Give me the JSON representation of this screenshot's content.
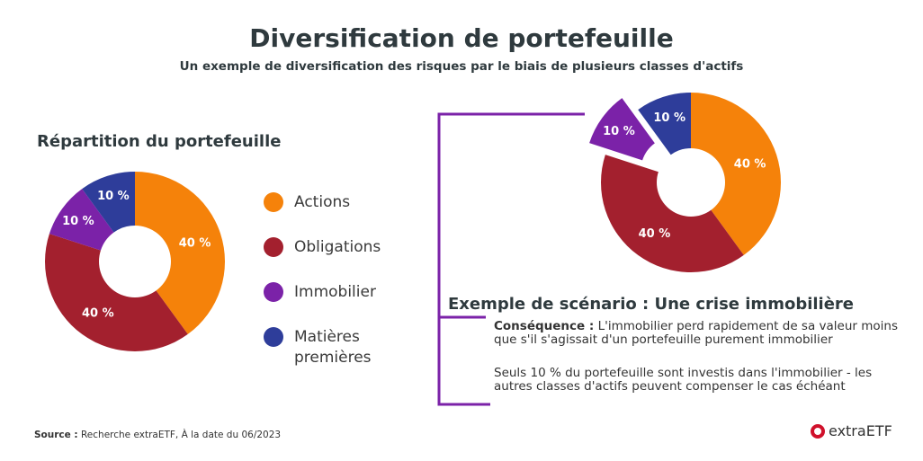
{
  "header": {
    "title": "Diversification de portefeuille",
    "subtitle": "Un exemple de diversification des risques par le biais de plusieurs classes d'actifs"
  },
  "chart_data": [
    {
      "type": "pie",
      "title": "Répartition du portefeuille",
      "categories": [
        "Actions",
        "Obligations",
        "Immobilier",
        "Matières premières"
      ],
      "values": [
        40,
        40,
        10,
        10
      ],
      "labels": [
        "40 %",
        "40 %",
        "10 %",
        "10 %"
      ],
      "colors": [
        "#F5820A",
        "#A3202E",
        "#7B22A8",
        "#2E3D9A"
      ],
      "legend_placement": "right"
    },
    {
      "type": "pie",
      "title": "",
      "categories": [
        "Actions",
        "Obligations",
        "Immobilier",
        "Matières premières"
      ],
      "values": [
        40,
        40,
        10,
        10
      ],
      "labels": [
        "40 %",
        "40 %",
        "10 %",
        "10 %"
      ],
      "colors": [
        "#F5820A",
        "#A3202E",
        "#7B22A8",
        "#2E3D9A"
      ],
      "exploded": "Immobilier"
    }
  ],
  "legend": [
    {
      "label": "Actions",
      "color": "#F5820A"
    },
    {
      "label": "Obligations",
      "color": "#A3202E"
    },
    {
      "label": "Immobilier",
      "color": "#7B22A8"
    },
    {
      "label": "Matières premières",
      "color": "#2E3D9A"
    }
  ],
  "scenario": {
    "title": "Exemple de scénario : Une crise immobilière",
    "consequence_label": "Conséquence :",
    "consequence_text": " L'immobilier perd rapidement de sa valeur moins que s'il s'agissait d'un portefeuille purement immobilier",
    "note": "Seuls 10 % du portefeuille sont investis dans l'immobilier - les autres classes d'actifs peuvent compenser le cas échéant"
  },
  "footer": {
    "source_label": "Source :",
    "source_text": " Recherche extraETF, À la date du 06/2023",
    "logo": "extraETF"
  },
  "accent": "#7B22A8"
}
